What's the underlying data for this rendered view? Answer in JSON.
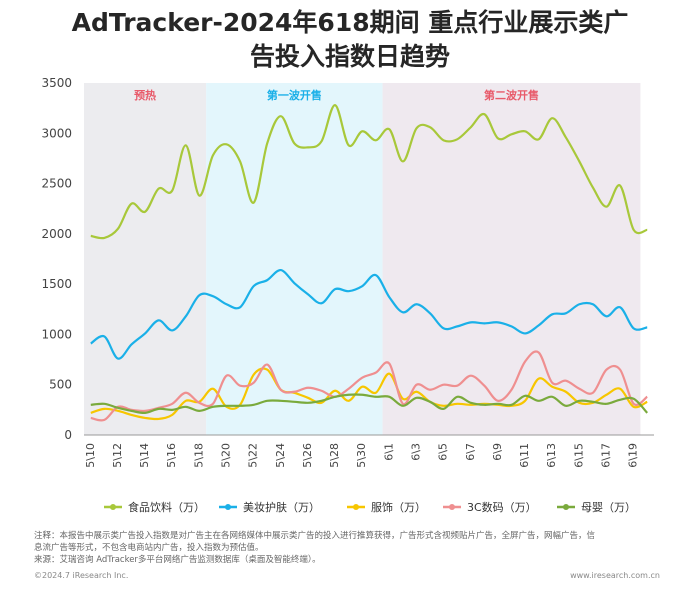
{
  "title_line1": "AdTracker-2024年618期间 重点行业展示类广",
  "title_line2": "告投入指数日趋势",
  "notes": {
    "line1": "注释：本报告中展示类广告投入指数是对广告主在各网络媒体中展示类广告的投入进行推算获得，广告形式含视频贴片广告，全屏广告，网幅广告，信",
    "line2": "息流广告等形式，不包含电商站内广告，投入指数为预估值。",
    "line3": "来源：艾瑞咨询 AdTracker多平台网络广告监测数据库（桌面及智能终端）。"
  },
  "footer": {
    "left": "©2024.7 iResearch Inc.",
    "right": "www.iresearch.com.cn"
  },
  "chart_data": {
    "type": "line",
    "ylim": [
      0,
      3500
    ],
    "yticks": [
      0,
      500,
      1000,
      1500,
      2000,
      2500,
      3000,
      3500
    ],
    "x": [
      "5\\10",
      "5\\11",
      "5\\12",
      "5\\13",
      "5\\14",
      "5\\15",
      "5\\16",
      "5\\17",
      "5\\18",
      "5\\19",
      "5\\20",
      "5\\21",
      "5\\22",
      "5\\23",
      "5\\24",
      "5\\25",
      "5\\26",
      "5\\27",
      "5\\28",
      "5\\29",
      "5\\30",
      "5\\31",
      "6\\1",
      "6\\2",
      "6\\3",
      "6\\4",
      "6\\5",
      "6\\6",
      "6\\7",
      "6\\8",
      "6\\9",
      "6\\10",
      "6\\11",
      "6\\12",
      "6\\13",
      "6\\14",
      "6\\15",
      "6\\16",
      "6\\17",
      "6\\18",
      "6\\19",
      "6\\20"
    ],
    "xtick_labels": [
      "5\\10",
      "5\\12",
      "5\\14",
      "5\\16",
      "5\\18",
      "5\\20",
      "5\\22",
      "5\\24",
      "5\\26",
      "5\\28",
      "5\\30",
      "6\\1",
      "6\\3",
      "6\\5",
      "6\\7",
      "6\\9",
      "6\\11",
      "6\\13",
      "6\\15",
      "6\\17",
      "6\\19"
    ],
    "phases": [
      {
        "label": "预热",
        "start": "5\\10",
        "end": "5\\19",
        "color": "#ececef",
        "label_color": "#e85a6a"
      },
      {
        "label": "第一波开售",
        "start": "5\\19",
        "end": "6\\1",
        "color": "#e3f6fc",
        "label_color": "#1ab0e8"
      },
      {
        "label": "第二波开售",
        "start": "6\\1",
        "end": "6\\20",
        "color": "#efe9ef",
        "label_color": "#e85a6a"
      }
    ],
    "series": [
      {
        "name": "食品饮料（万）",
        "color": "#a8c83a",
        "values": [
          1980,
          1960,
          2050,
          2300,
          2220,
          2450,
          2430,
          2880,
          2380,
          2780,
          2890,
          2720,
          2310,
          2900,
          3170,
          2900,
          2860,
          2920,
          3280,
          2880,
          3020,
          2930,
          3040,
          2720,
          3050,
          3060,
          2930,
          2940,
          3060,
          3190,
          2950,
          2990,
          3020,
          2940,
          3150,
          2960,
          2720,
          2460,
          2270,
          2480,
          2040,
          2040
        ]
      },
      {
        "name": "美妆护肤（万）",
        "color": "#1ab0e8",
        "values": [
          910,
          980,
          760,
          900,
          1010,
          1140,
          1040,
          1180,
          1390,
          1380,
          1300,
          1270,
          1480,
          1540,
          1640,
          1510,
          1400,
          1310,
          1450,
          1430,
          1480,
          1590,
          1370,
          1220,
          1300,
          1210,
          1060,
          1080,
          1120,
          1110,
          1120,
          1080,
          1010,
          1090,
          1200,
          1210,
          1300,
          1300,
          1180,
          1270,
          1060,
          1070
        ]
      },
      {
        "name": "服饰（万）",
        "color": "#f7c600",
        "values": [
          220,
          260,
          240,
          200,
          170,
          160,
          200,
          340,
          330,
          460,
          280,
          300,
          600,
          650,
          450,
          420,
          370,
          320,
          440,
          340,
          480,
          420,
          610,
          360,
          430,
          330,
          290,
          310,
          300,
          310,
          300,
          290,
          340,
          560,
          480,
          430,
          320,
          320,
          400,
          460,
          280,
          330
        ]
      },
      {
        "name": "3C数码（万）",
        "color": "#ef8f90",
        "values": [
          170,
          150,
          280,
          250,
          240,
          270,
          310,
          420,
          320,
          310,
          590,
          490,
          520,
          700,
          450,
          430,
          470,
          440,
          380,
          460,
          570,
          620,
          710,
          310,
          500,
          450,
          500,
          490,
          590,
          490,
          340,
          450,
          730,
          820,
          520,
          540,
          460,
          420,
          650,
          650,
          310,
          380
        ]
      },
      {
        "name": "母婴（万）",
        "color": "#7aaa3c",
        "values": [
          300,
          310,
          270,
          240,
          220,
          260,
          250,
          280,
          240,
          280,
          290,
          290,
          300,
          340,
          340,
          330,
          320,
          340,
          380,
          400,
          400,
          380,
          380,
          290,
          370,
          330,
          260,
          380,
          320,
          300,
          310,
          300,
          390,
          340,
          380,
          290,
          340,
          330,
          310,
          350,
          360,
          220
        ]
      }
    ]
  }
}
